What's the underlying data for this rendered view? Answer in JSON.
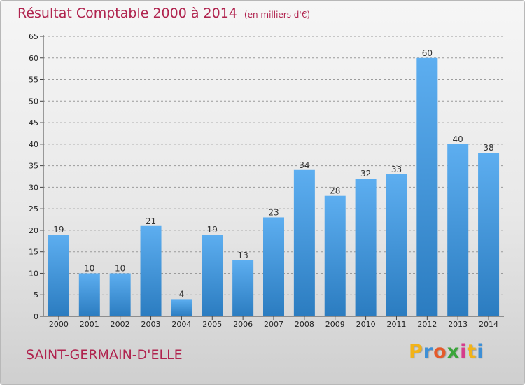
{
  "title": "Résultat Comptable 2000 à 2014",
  "title_unit": "(en milliers d'€)",
  "commune": "SAINT-GERMAIN-D'ELLE",
  "brand": {
    "letters": [
      "P",
      "r",
      "o",
      "x",
      "i",
      "t",
      "i"
    ],
    "colors": [
      "#f2b318",
      "#3d8fd6",
      "#e55a2a",
      "#3aa53a",
      "#d63c8c",
      "#f2b318",
      "#3d8fd6"
    ]
  },
  "colors": {
    "bar_light": "#5daef0",
    "bar_dark": "#2b7cc0",
    "title": "#b0234e",
    "grid": "#9a9a9a"
  },
  "chart_data": {
    "type": "bar",
    "categories": [
      "2000",
      "2001",
      "2002",
      "2003",
      "2004",
      "2005",
      "2006",
      "2007",
      "2008",
      "2009",
      "2010",
      "2011",
      "2012",
      "2013",
      "2014"
    ],
    "values": [
      19,
      10,
      10,
      21,
      4,
      19,
      13,
      23,
      34,
      28,
      32,
      33,
      60,
      40,
      38
    ],
    "ylim": [
      0,
      65
    ],
    "yticks": [
      0,
      5,
      10,
      15,
      20,
      25,
      30,
      35,
      40,
      45,
      50,
      55,
      60,
      65
    ],
    "grid": "horizontal dashed",
    "data_labels": true
  }
}
